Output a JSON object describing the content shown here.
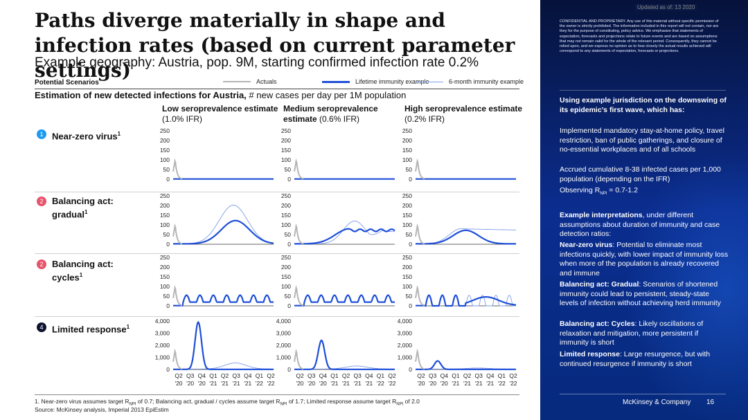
{
  "header": {
    "title": "Paths diverge materially in shape and infection rates (based on current parameter settings)",
    "subtitle": "Example geography: Austria, pop. 9M, starting confirmed infection rate 0.2%",
    "stamp": "Updated as of: 13 2020"
  },
  "scenarios_label": "Potential Scenarios",
  "legend": {
    "actuals": "Actuals",
    "lifetime": "Lifetime immunity example",
    "six_month": "6-month immunity example"
  },
  "estimation": {
    "bold": "Estimation of new detected infections for Austria,",
    "rest": " # new cases per day per 1M population"
  },
  "columns": [
    {
      "bold": "Low seroprevalence estimate",
      "normal": "(1.0% IFR)"
    },
    {
      "bold": "Medium seroprevalence",
      "bold2": "estimate",
      "normal": "(0.6% IFR)"
    },
    {
      "bold": "High seroprevalence estimate",
      "normal": "(0.2% IFR)"
    }
  ],
  "rows": [
    {
      "num": "1",
      "label": "Near-zero virus",
      "sup": "1",
      "color": "#1e9bf0"
    },
    {
      "num": "2",
      "label": "Balancing act: gradual",
      "line1": "Balancing act:",
      "line2": "gradual",
      "sup": "1",
      "color": "#e8546b"
    },
    {
      "num": "2",
      "label": "Balancing act: cycles",
      "line1": "Balancing act:",
      "line2": "cycles",
      "sup": "1",
      "color": "#e8546b"
    },
    {
      "num": "4",
      "label": "Limited response",
      "sup": "1",
      "color": "#0e1330"
    }
  ],
  "x_ticks_top": [
    "Q2",
    "Q3",
    "Q4",
    "Q1",
    "Q2",
    "Q3",
    "Q4",
    "Q1",
    "Q2"
  ],
  "x_ticks_bottom": [
    "'20",
    "'20",
    "'20",
    "'21",
    "'21",
    "'21",
    "'21",
    "'22",
    "'22"
  ],
  "chart_data": {
    "type": "line",
    "title": "Estimation of new detected infections for Austria, # new cases per day per 1M population",
    "x": [
      "Q2 '20",
      "Q3 '20",
      "Q4 '20",
      "Q1 '21",
      "Q2 '21",
      "Q3 '21",
      "Q4 '21",
      "Q1 '22",
      "Q2 '22"
    ],
    "ylim_small": [
      0,
      250
    ],
    "yticks_small": [
      "250",
      "200",
      "150",
      "100",
      "50",
      "0"
    ],
    "ylim_large": [
      0,
      4000
    ],
    "yticks_large": [
      "4,000",
      "3,000",
      "2,000",
      "1,000",
      "0"
    ],
    "series_names": [
      "Actuals",
      "Lifetime immunity example",
      "6-month immunity example"
    ],
    "colors": {
      "actuals": "#b5b5b5",
      "lifetime": "#1d4ed8",
      "six_month": "#7c9be8"
    },
    "panels": [
      {
        "row": "Near-zero virus",
        "column": "Low seroprevalence estimate",
        "peak_lifetime": 0,
        "peak_six_month": 0
      },
      {
        "row": "Near-zero virus",
        "column": "Medium seroprevalence estimate",
        "peak_lifetime": 0,
        "peak_six_month": 0
      },
      {
        "row": "Near-zero virus",
        "column": "High seroprevalence estimate",
        "peak_lifetime": 0,
        "peak_six_month": 0
      },
      {
        "row": "Balancing act: gradual",
        "column": "Low seroprevalence estimate",
        "peak_lifetime": 120,
        "peak_six_month": 200
      },
      {
        "row": "Balancing act: gradual",
        "column": "Medium seroprevalence estimate",
        "peak_lifetime": 78,
        "peak_six_month": 118
      },
      {
        "row": "Balancing act: gradual",
        "column": "High seroprevalence estimate",
        "peak_lifetime": 70,
        "peak_six_month": 78
      },
      {
        "row": "Balancing act: cycles",
        "column": "Low seroprevalence estimate",
        "peak_lifetime": 55,
        "peak_six_month": 55
      },
      {
        "row": "Balancing act: cycles",
        "column": "Medium seroprevalence estimate",
        "peak_lifetime": 55,
        "peak_six_month": 55
      },
      {
        "row": "Balancing act: cycles",
        "column": "High seroprevalence estimate",
        "peak_lifetime": 55,
        "peak_six_month": 55
      },
      {
        "row": "Limited response",
        "column": "Low seroprevalence estimate",
        "peak_lifetime": 3900,
        "peak_six_month": 500
      },
      {
        "row": "Limited response",
        "column": "Medium seroprevalence estimate",
        "peak_lifetime": 2400,
        "peak_six_month": 250
      },
      {
        "row": "Limited response",
        "column": "High seroprevalence estimate",
        "peak_lifetime": 700,
        "peak_six_month": 80
      }
    ]
  },
  "footnotes": {
    "note1_a": "1.   Near-zero virus assumes target R",
    "note1_sub1": "NPI",
    "note1_b": " of 0.7; Balancing act, gradual / cycles assume target R",
    "note1_sub2": "NPI",
    "note1_c": " of 1.7; Limited response assume target R",
    "note1_sub3": "NPI",
    "note1_d": " of 2.0",
    "source": "Source: McKinsey analysis, Imperial 2013 EpiEstim"
  },
  "right_panel": {
    "confidential": "CONFIDENTIAL AND PROPRIETARY. Any use of this material without specific permission of the owner is strictly prohibited. The information included in this report will not contain, nor are they for the purpose of constituting, policy advice. We emphasize that statements of expectation, forecasts and projections relate to future events and are based on assumptions that may not remain valid for the whole of the relevant period. Consequently, they cannot be relied upon, and we express no opinion as to how closely the actual results achieved will correspond to any statements of expectation, forecasts or projections.",
    "intro": "Using example jurisdiction on the downswing of its epidemic's first wave, which has:",
    "point1": "Implemented mandatory stay-at-home policy, travel restriction, ban of public gatherings, and closure of no-essential workplaces and of all schools",
    "point2": "Accrued cumulative 8-38 infected cases per 1,000 population (depending on the IFR)",
    "point3_a": "Observing R",
    "point3_sub": "NPI",
    "point3_b": " = 0.7-1.2",
    "interp_bold": "Example interpretations",
    "interp_rest": ", under different assumptions about duration of immunity and case detection ratios:",
    "i1_bold": "Near-zero virus",
    "i1_rest": ": Potential to eliminate most infections quickly, with lower impact of immunity loss when more of the population is already recovered and immune",
    "i2_bold": "Balancing act: Gradual",
    "i2_rest": ": Scenarios of shortened immunity could lead to persistent, steady-state levels of infection without achieving herd immunity",
    "i3_bold": "Balancing act: Cycles",
    "i3_rest": ": Likely oscillations of relaxation and mitigation, more persistent if immunity is short",
    "i4_bold": "Limited response",
    "i4_rest": ": Large resurgence, but with continued resurgence if immunity is short",
    "brand": "McKinsey & Company",
    "page": "16"
  }
}
